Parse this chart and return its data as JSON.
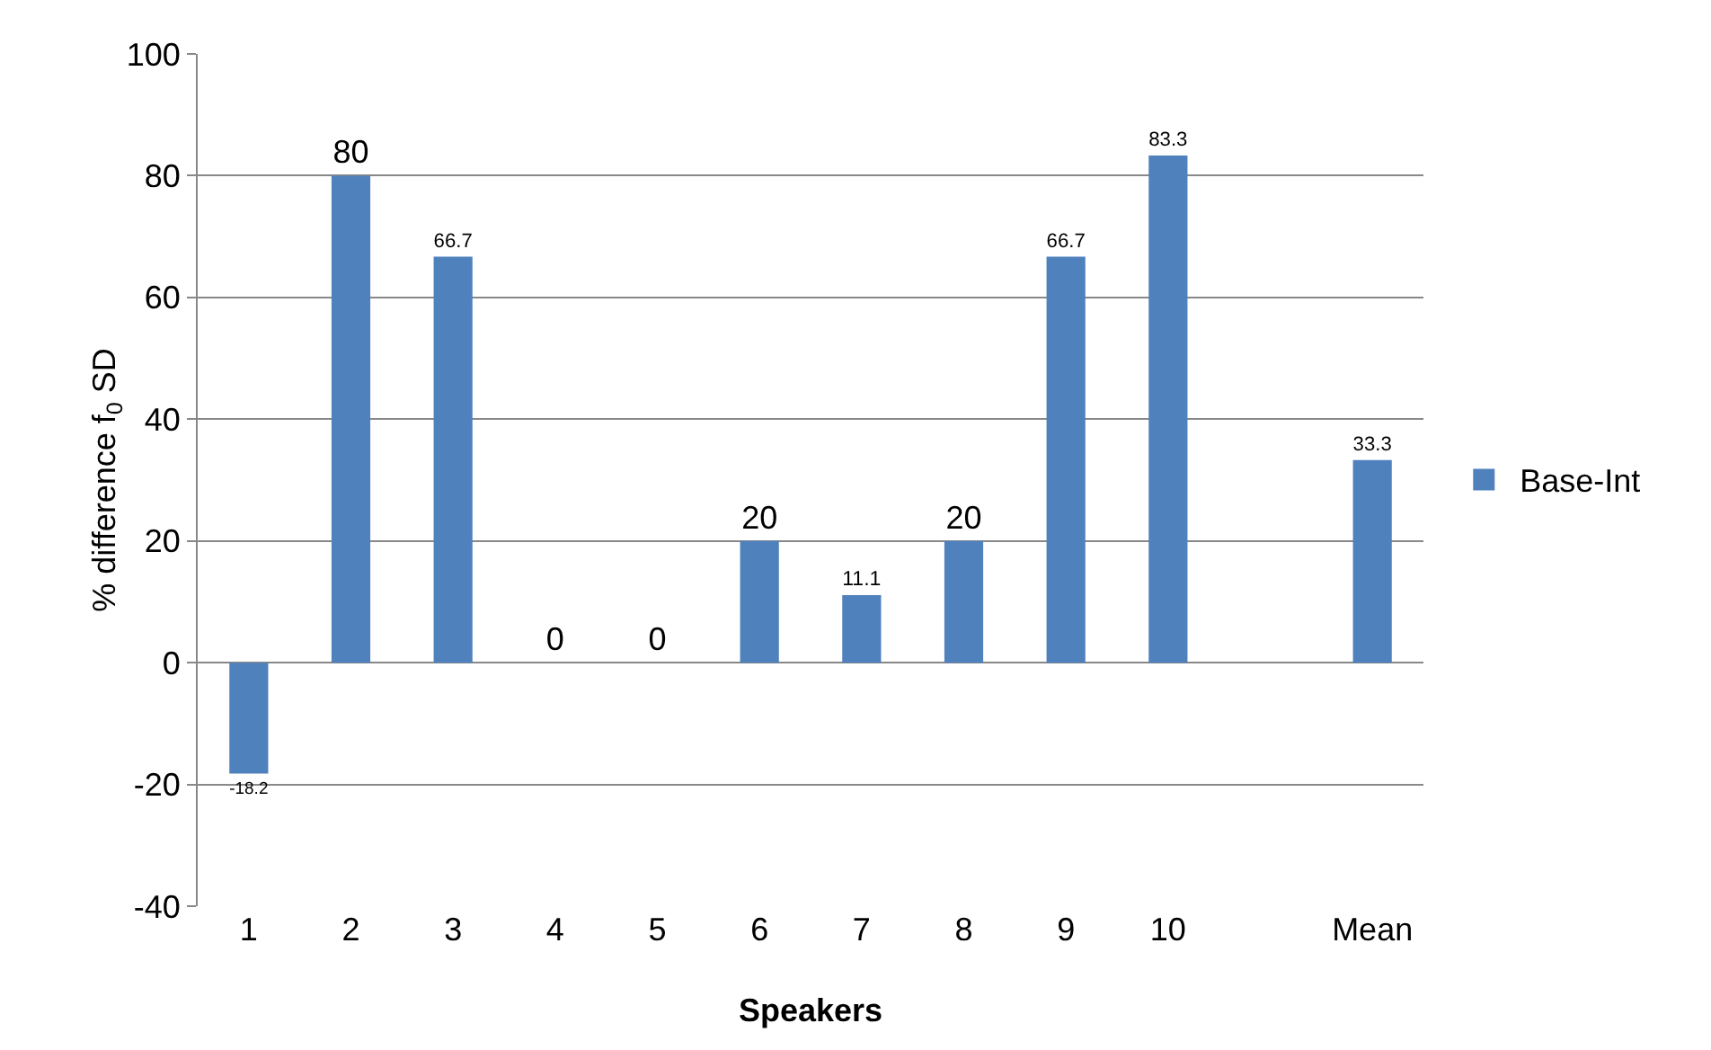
{
  "chart_data": {
    "type": "bar",
    "categories": [
      "1",
      "2",
      "3",
      "4",
      "5",
      "6",
      "7",
      "8",
      "9",
      "10",
      null,
      "Mean"
    ],
    "series": [
      {
        "name": "Base-Int",
        "color": "#4f81bd",
        "values": [
          -18.2,
          80,
          66.7,
          0,
          0,
          20,
          11.1,
          20,
          66.7,
          83.3,
          null,
          33.3
        ]
      }
    ],
    "xlabel": "Speakers",
    "ylabel": "% difference f$_{0}$ SD",
    "ylim": [
      -40,
      100
    ],
    "yticks": [
      -40,
      -20,
      0,
      20,
      40,
      60,
      80,
      100
    ],
    "grid": "y",
    "legend": "right",
    "data_labels": true
  }
}
